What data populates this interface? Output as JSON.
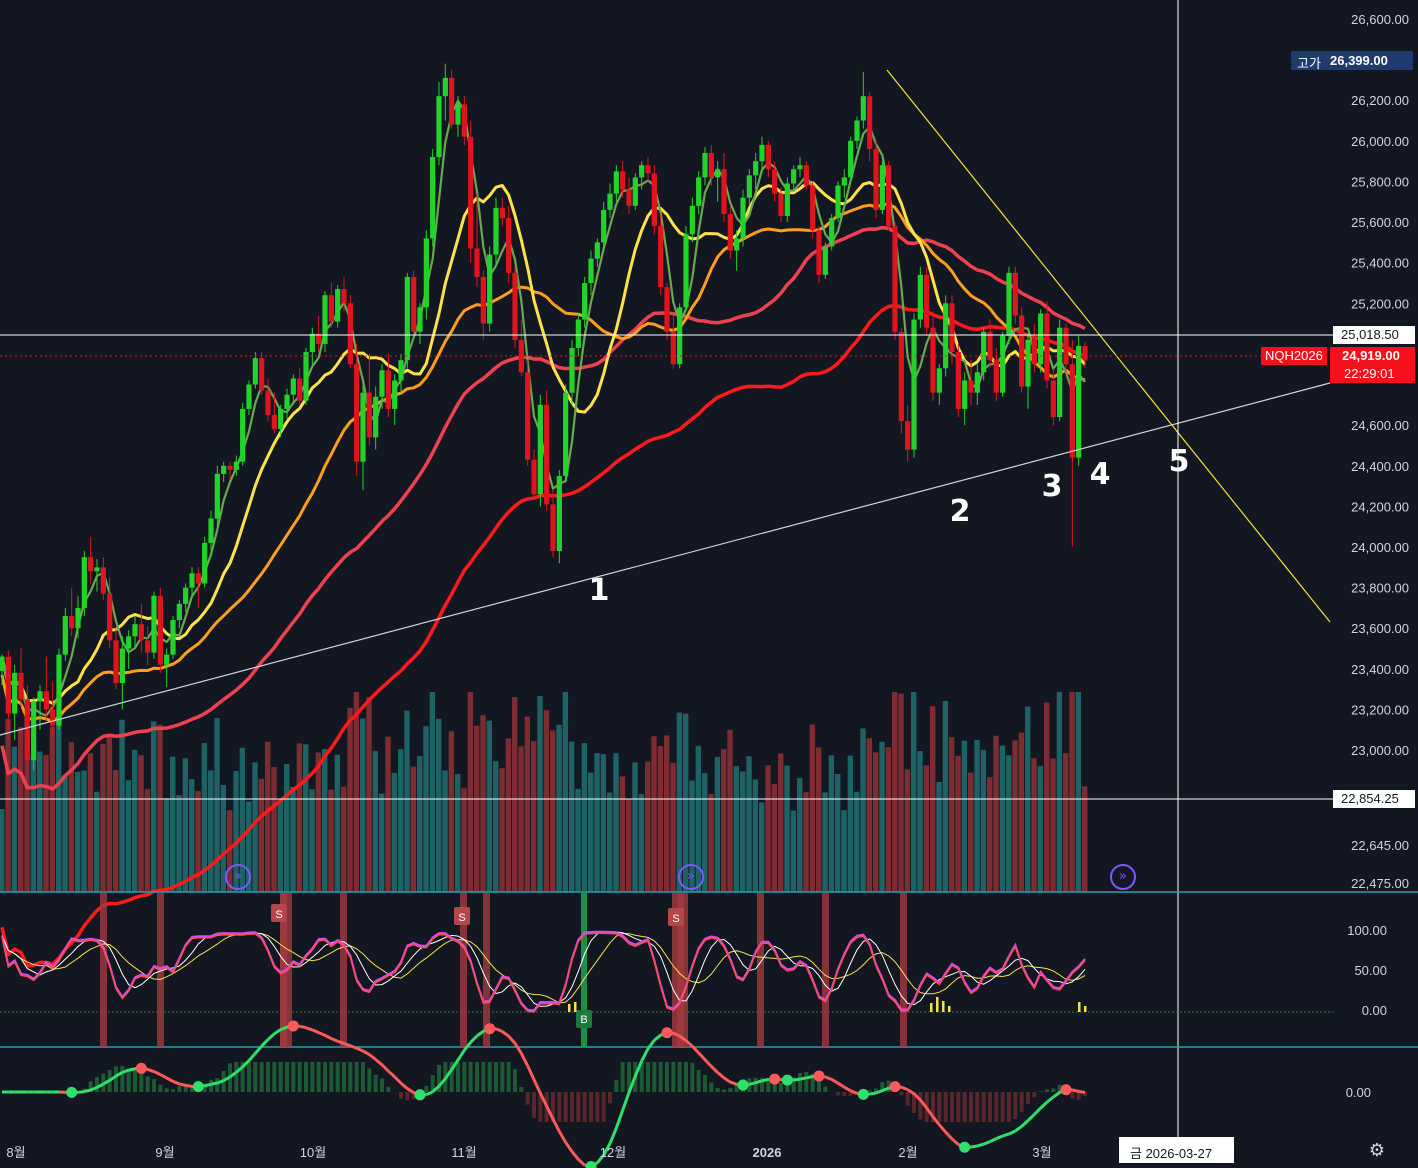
{
  "symbol": "NQH2026",
  "price_axis": {
    "ticks": [
      "26,600.00",
      "26,200.00",
      "26,000.00",
      "25,800.00",
      "25,600.00",
      "25,400.00",
      "25,200.00",
      "24,600.00",
      "24,400.00",
      "24,200.00",
      "24,000.00",
      "23,800.00",
      "23,600.00",
      "23,400.00",
      "23,200.00",
      "23,000.00",
      "22,645.00",
      "22,475.00"
    ]
  },
  "badges": {
    "high_label": "고가",
    "high_value": "26,399.00",
    "crosshair_price": "25,018.50",
    "last_price": "24,919.00",
    "countdown": "22:29:01",
    "lower_line_price": "22,854.25"
  },
  "oscillator_axis": {
    "ticks": [
      "100.00",
      "50.00",
      "0.00"
    ]
  },
  "macd_axis": {
    "ticks": [
      "0.00"
    ]
  },
  "time_axis": {
    "labels": [
      "8월",
      "9월",
      "10월",
      "11월",
      "12월",
      "2026",
      "2월",
      "3월"
    ],
    "crosshair_date": "금 2026-03-27"
  },
  "annotations": {
    "wave_labels": [
      "1",
      "2",
      "3",
      "4",
      "5"
    ]
  },
  "signals": {
    "sell_label": "S",
    "buy_label": "B"
  },
  "colors": {
    "background": "#131722",
    "up_candle": "#22d42a",
    "down_candle": "#e0141e",
    "ma_fast": "#6aa84f",
    "ma_20": "#ffe24a",
    "ma_50": "#ff9d1c",
    "ma_100": "#ef4050",
    "ma_200": "#ff1a1a",
    "trendline_up": "#d1d4dc",
    "trendline_down": "#f2df39",
    "volume_up": "#1f6b6e",
    "volume_down": "#8a2f33",
    "osc_fast": "#d24bf0",
    "osc_red": "#ff4d4d",
    "osc_slow": "#ffffff",
    "osc_yellow": "#f5e14c",
    "price_badge": "#f5101c",
    "high_badge": "#1e3a6e"
  },
  "chart_data": {
    "type": "candlestick",
    "price_range": [
      22475,
      26600
    ],
    "x_axis_months": [
      "8월",
      "9월",
      "10월",
      "11월",
      "12월",
      "2026",
      "2월",
      "3월"
    ],
    "candles_ohlc": [
      [
        23390,
        23470,
        23320,
        23460
      ],
      [
        23460,
        23490,
        23100,
        23180
      ],
      [
        23180,
        23420,
        23050,
        23380
      ],
      [
        23380,
        23500,
        23210,
        23250
      ],
      [
        23250,
        23320,
        22840,
        22950
      ],
      [
        22950,
        23260,
        22900,
        23240
      ],
      [
        23240,
        23320,
        23100,
        23290
      ],
      [
        23290,
        23460,
        23150,
        23200
      ],
      [
        23200,
        23340,
        23070,
        23120
      ],
      [
        23120,
        23500,
        23100,
        23470
      ],
      [
        23470,
        23700,
        23440,
        23660
      ],
      [
        23660,
        23800,
        23560,
        23600
      ],
      [
        23600,
        23760,
        23550,
        23700
      ],
      [
        23700,
        23980,
        23660,
        23950
      ],
      [
        23950,
        24050,
        23820,
        23880
      ],
      [
        23880,
        23940,
        23780,
        23900
      ],
      [
        23900,
        23950,
        23740,
        23770
      ],
      [
        23770,
        23850,
        23500,
        23540
      ],
      [
        23540,
        23600,
        23300,
        23330
      ],
      [
        23330,
        23560,
        23200,
        23500
      ],
      [
        23500,
        23590,
        23400,
        23560
      ],
      [
        23560,
        23660,
        23500,
        23620
      ],
      [
        23620,
        23720,
        23480,
        23540
      ],
      [
        23540,
        23610,
        23420,
        23480
      ],
      [
        23480,
        23780,
        23450,
        23760
      ],
      [
        23760,
        23800,
        23380,
        23420
      ],
      [
        23420,
        23500,
        23310,
        23470
      ],
      [
        23470,
        23660,
        23450,
        23640
      ],
      [
        23640,
        23740,
        23600,
        23720
      ],
      [
        23720,
        23820,
        23680,
        23800
      ],
      [
        23800,
        23900,
        23750,
        23870
      ],
      [
        23870,
        23900,
        23700,
        23820
      ],
      [
        23820,
        24050,
        23800,
        24020
      ],
      [
        24020,
        24180,
        23950,
        24140
      ],
      [
        24140,
        24400,
        24100,
        24360
      ],
      [
        24360,
        24420,
        24320,
        24400
      ],
      [
        24400,
        24420,
        24330,
        24380
      ],
      [
        24380,
        24450,
        24350,
        24420
      ],
      [
        24420,
        24710,
        24400,
        24680
      ],
      [
        24680,
        24820,
        24650,
        24800
      ],
      [
        24800,
        24960,
        24780,
        24930
      ],
      [
        24930,
        24960,
        24750,
        24770
      ],
      [
        24770,
        24830,
        24620,
        24650
      ],
      [
        24650,
        24760,
        24560,
        24580
      ],
      [
        24580,
        24700,
        24540,
        24680
      ],
      [
        24680,
        24780,
        24630,
        24750
      ],
      [
        24750,
        24850,
        24700,
        24830
      ],
      [
        24830,
        24880,
        24700,
        24720
      ],
      [
        24720,
        24980,
        24700,
        24960
      ],
      [
        24960,
        25080,
        24900,
        25050
      ],
      [
        25050,
        25140,
        24960,
        25000
      ],
      [
        25000,
        25260,
        24960,
        25240
      ],
      [
        25240,
        25300,
        25080,
        25110
      ],
      [
        25110,
        25290,
        25080,
        25270
      ],
      [
        25270,
        25330,
        25160,
        25200
      ],
      [
        25200,
        25240,
        24880,
        24900
      ],
      [
        24900,
        25000,
        24350,
        24420
      ],
      [
        24420,
        24800,
        24280,
        24760
      ],
      [
        24760,
        24950,
        24500,
        24540
      ],
      [
        24540,
        24790,
        24480,
        24740
      ],
      [
        24740,
        24900,
        24680,
        24870
      ],
      [
        24870,
        24950,
        24640,
        24680
      ],
      [
        24680,
        24850,
        24600,
        24820
      ],
      [
        24820,
        24950,
        24760,
        24920
      ],
      [
        24920,
        25350,
        24880,
        25330
      ],
      [
        25330,
        25360,
        25040,
        25060
      ],
      [
        25060,
        25200,
        25000,
        25180
      ],
      [
        25180,
        25560,
        25120,
        25520
      ],
      [
        25520,
        25960,
        25480,
        25920
      ],
      [
        25920,
        26290,
        25880,
        26220
      ],
      [
        26220,
        26380,
        26100,
        26310
      ],
      [
        26310,
        26350,
        26060,
        26080
      ],
      [
        26080,
        26220,
        26020,
        26180
      ],
      [
        26180,
        26220,
        25980,
        26020
      ],
      [
        26020,
        26100,
        25400,
        25470
      ],
      [
        25470,
        25740,
        25280,
        25330
      ],
      [
        25330,
        25360,
        25020,
        25100
      ],
      [
        25100,
        25480,
        25060,
        25440
      ],
      [
        25440,
        25720,
        25380,
        25670
      ],
      [
        25670,
        25720,
        25580,
        25620
      ],
      [
        25620,
        25680,
        25300,
        25350
      ],
      [
        25350,
        25380,
        24980,
        25020
      ],
      [
        25020,
        25120,
        24840,
        24860
      ],
      [
        24860,
        24920,
        24400,
        24430
      ],
      [
        24430,
        24480,
        24240,
        24260
      ],
      [
        24260,
        24750,
        24200,
        24700
      ],
      [
        24700,
        24770,
        24180,
        24210
      ],
      [
        24210,
        24280,
        23950,
        23980
      ],
      [
        23980,
        24380,
        23920,
        24350
      ],
      [
        24350,
        24800,
        24320,
        24760
      ],
      [
        24760,
        25020,
        24700,
        24980
      ],
      [
        24980,
        25150,
        24940,
        25120
      ],
      [
        25120,
        25330,
        25080,
        25300
      ],
      [
        25300,
        25460,
        25240,
        25420
      ],
      [
        25420,
        25520,
        25380,
        25500
      ],
      [
        25500,
        25700,
        25460,
        25660
      ],
      [
        25660,
        25790,
        25620,
        25740
      ],
      [
        25740,
        25880,
        25700,
        25850
      ],
      [
        25850,
        25900,
        25720,
        25760
      ],
      [
        25760,
        25820,
        25640,
        25680
      ],
      [
        25680,
        25840,
        25660,
        25820
      ],
      [
        25820,
        25900,
        25760,
        25880
      ],
      [
        25880,
        25920,
        25800,
        25840
      ],
      [
        25840,
        25880,
        25540,
        25580
      ],
      [
        25580,
        25640,
        25240,
        25280
      ],
      [
        25280,
        25300,
        25020,
        25060
      ],
      [
        25060,
        25140,
        24880,
        24900
      ],
      [
        24900,
        25200,
        24880,
        25180
      ],
      [
        25180,
        25580,
        25160,
        25540
      ],
      [
        25540,
        25720,
        25500,
        25680
      ],
      [
        25680,
        25850,
        25640,
        25820
      ],
      [
        25820,
        25970,
        25780,
        25940
      ],
      [
        25940,
        25980,
        25780,
        25820
      ],
      [
        25820,
        25900,
        25700,
        25860
      ],
      [
        25860,
        25940,
        25600,
        25640
      ],
      [
        25640,
        25680,
        25420,
        25460
      ],
      [
        25460,
        25560,
        25360,
        25520
      ],
      [
        25520,
        25760,
        25480,
        25720
      ],
      [
        25720,
        25860,
        25680,
        25830
      ],
      [
        25830,
        25940,
        25760,
        25900
      ],
      [
        25900,
        26020,
        25840,
        25980
      ],
      [
        25980,
        26000,
        25820,
        25860
      ],
      [
        25860,
        25900,
        25700,
        25740
      ],
      [
        25740,
        25770,
        25600,
        25630
      ],
      [
        25630,
        25820,
        25600,
        25790
      ],
      [
        25790,
        25880,
        25760,
        25860
      ],
      [
        25860,
        25920,
        25820,
        25880
      ],
      [
        25880,
        25900,
        25760,
        25780
      ],
      [
        25780,
        25800,
        25520,
        25560
      ],
      [
        25560,
        25580,
        25300,
        25340
      ],
      [
        25340,
        25500,
        25320,
        25480
      ],
      [
        25480,
        25640,
        25460,
        25620
      ],
      [
        25620,
        25800,
        25600,
        25780
      ],
      [
        25780,
        25860,
        25720,
        25820
      ],
      [
        25820,
        26020,
        25800,
        26000
      ],
      [
        26000,
        26120,
        25960,
        26100
      ],
      [
        26100,
        26340,
        26060,
        26220
      ],
      [
        26220,
        26240,
        25900,
        25960
      ],
      [
        25960,
        26000,
        25620,
        25660
      ],
      [
        25660,
        25900,
        25640,
        25880
      ],
      [
        25880,
        25900,
        25560,
        25580
      ],
      [
        25580,
        25600,
        25020,
        25060
      ],
      [
        25060,
        25080,
        24560,
        24620
      ],
      [
        24620,
        24700,
        24420,
        24480
      ],
      [
        24480,
        25150,
        24440,
        25120
      ],
      [
        25120,
        25380,
        25080,
        25340
      ],
      [
        25340,
        25380,
        25040,
        25080
      ],
      [
        25080,
        25160,
        24720,
        24760
      ],
      [
        24760,
        24900,
        24700,
        24880
      ],
      [
        24880,
        25240,
        24840,
        25200
      ],
      [
        25200,
        25240,
        24900,
        24960
      ],
      [
        24960,
        25000,
        24640,
        24680
      ],
      [
        24680,
        24860,
        24600,
        24820
      ],
      [
        24820,
        24920,
        24700,
        24760
      ],
      [
        24760,
        24900,
        24700,
        24860
      ],
      [
        24860,
        25080,
        24820,
        25060
      ],
      [
        25060,
        25120,
        24880,
        24920
      ],
      [
        24920,
        24980,
        24720,
        24760
      ],
      [
        24760,
        25060,
        24740,
        25040
      ],
      [
        25040,
        25380,
        25000,
        25350
      ],
      [
        25350,
        25380,
        25100,
        25140
      ],
      [
        25140,
        25180,
        24760,
        24790
      ],
      [
        24790,
        25050,
        24680,
        25020
      ],
      [
        25020,
        25100,
        24860,
        24900
      ],
      [
        24900,
        25170,
        24860,
        25150
      ],
      [
        25150,
        25210,
        24780,
        24820
      ],
      [
        24820,
        24880,
        24600,
        24640
      ],
      [
        24640,
        25120,
        24620,
        25080
      ],
      [
        25080,
        25100,
        24860,
        24900
      ],
      [
        24900,
        25020,
        24000,
        24440
      ],
      [
        24440,
        25040,
        24400,
        24990
      ],
      [
        24990,
        25010,
        24880,
        24919
      ]
    ]
  }
}
